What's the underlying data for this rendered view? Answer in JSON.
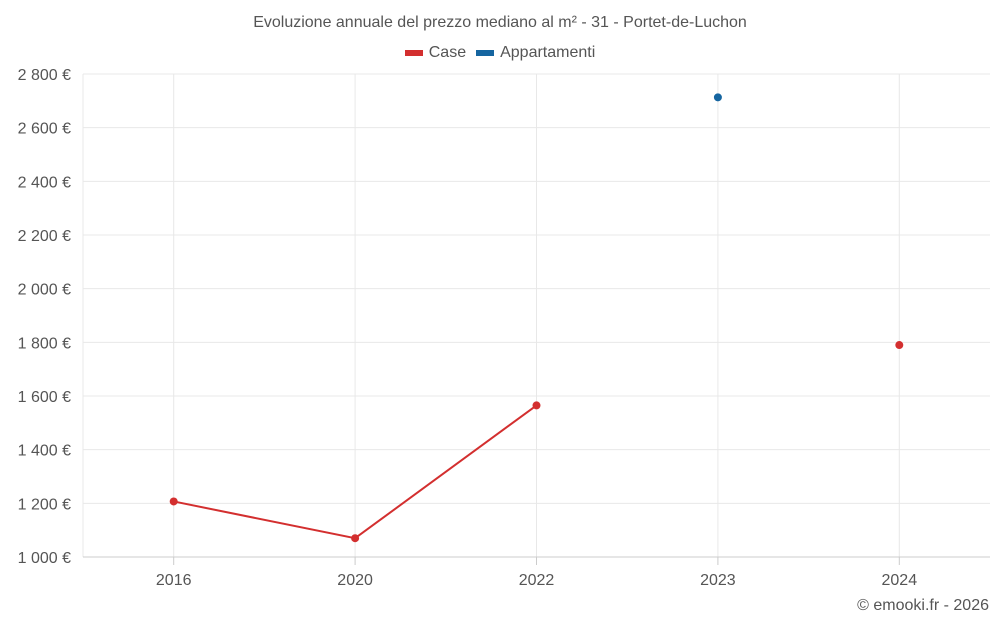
{
  "header": {
    "title": "Evoluzione annuale del prezzo mediano al m² - 31 - Portet-de-Luchon"
  },
  "legend": [
    {
      "label": "Case",
      "color": "#d32f2f"
    },
    {
      "label": "Appartamenti",
      "color": "#1565a0"
    }
  ],
  "footer": {
    "credit": "© emooki.fr - 2026"
  },
  "chart_data": {
    "type": "line",
    "title": "Evoluzione annuale del prezzo mediano al m² - 31 - Portet-de-Luchon",
    "categories": [
      "2016",
      "2020",
      "2022",
      "2023",
      "2024"
    ],
    "ylim": [
      1000,
      2800
    ],
    "yticks": [
      1000,
      1200,
      1400,
      1600,
      1800,
      2000,
      2200,
      2400,
      2600,
      2800
    ],
    "ytick_labels": [
      "1 000 €",
      "1 200 €",
      "1 400 €",
      "1 600 €",
      "1 800 €",
      "2 000 €",
      "2 200 €",
      "2 400 €",
      "2 600 €",
      "2 800 €"
    ],
    "grid": true,
    "legend_position": "top-center",
    "series": [
      {
        "name": "Case",
        "color": "#d32f2f",
        "values": [
          1207,
          1070,
          1565,
          null,
          1790
        ]
      },
      {
        "name": "Appartamenti",
        "color": "#1565a0",
        "values": [
          null,
          null,
          null,
          2713,
          null
        ]
      }
    ]
  }
}
